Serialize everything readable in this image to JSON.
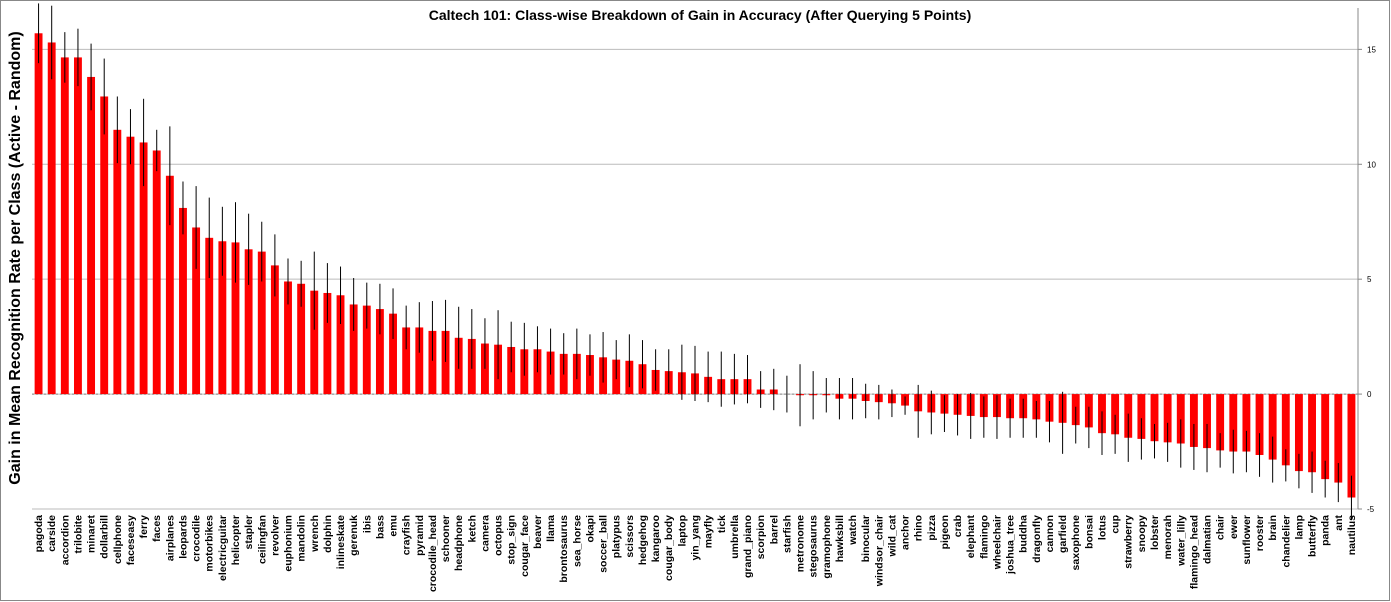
{
  "chart_data": {
    "type": "bar",
    "title": "Caltech 101: Class-wise Breakdown of Gain in Accuracy (After Querying 5 Points)",
    "y_label": "Gain in Mean Recognition Rate per Class (Active - Random)",
    "color": "#ff0000",
    "grid": true,
    "ylim": [
      -5,
      16.8
    ],
    "yticks": [
      -5,
      0,
      5,
      10,
      15
    ],
    "categories": [
      "pagoda",
      "carside",
      "accordion",
      "trilobite",
      "minaret",
      "dollarbill",
      "cellphone",
      "faceseasy",
      "ferry",
      "faces",
      "airplanes",
      "leopards",
      "crocodile",
      "motorbikes",
      "electricguitar",
      "helicopter",
      "stapler",
      "ceilingfan",
      "revolver",
      "euphonium",
      "mandolin",
      "wrench",
      "dolphin",
      "inlineskate",
      "gerenuk",
      "ibis",
      "bass",
      "emu",
      "crayfish",
      "pyramid",
      "crocodile_head",
      "schooner",
      "headphone",
      "ketch",
      "camera",
      "octopus",
      "stop_sign",
      "cougar_face",
      "beaver",
      "llama",
      "brontosaurus",
      "sea_horse",
      "okapi",
      "soccer_ball",
      "platypus",
      "scissors",
      "hedgehog",
      "kangaroo",
      "cougar_body",
      "laptop",
      "yin_yang",
      "mayfly",
      "tick",
      "umbrella",
      "grand_piano",
      "scorpion",
      "barrel",
      "starfish",
      "metronome",
      "stegosaurus",
      "gramophone",
      "hawksbill",
      "watch",
      "binocular",
      "windsor_chair",
      "wild_cat",
      "anchor",
      "rhino",
      "pizza",
      "pigeon",
      "crab",
      "elephant",
      "flamingo",
      "wheelchair",
      "joshua_tree",
      "buddha",
      "dragonfly",
      "cannon",
      "garfield",
      "saxophone",
      "bonsai",
      "lotus",
      "cup",
      "strawberry",
      "snoopy",
      "lobster",
      "menorah",
      "water_lilly",
      "flamingo_head",
      "dalmatian",
      "chair",
      "ewer",
      "sunflower",
      "rooster",
      "brain",
      "chandelier",
      "lamp",
      "butterfly",
      "panda",
      "ant",
      "nautilus"
    ],
    "values": [
      15.7,
      15.3,
      14.65,
      14.65,
      13.8,
      12.95,
      11.5,
      11.2,
      10.95,
      10.6,
      9.5,
      8.1,
      7.25,
      6.8,
      6.65,
      6.6,
      6.3,
      6.2,
      5.6,
      4.9,
      4.8,
      4.5,
      4.4,
      4.3,
      3.9,
      3.85,
      3.7,
      3.5,
      2.9,
      2.9,
      2.75,
      2.75,
      2.45,
      2.4,
      2.2,
      2.15,
      2.05,
      1.95,
      1.95,
      1.85,
      1.75,
      1.75,
      1.7,
      1.6,
      1.5,
      1.45,
      1.3,
      1.05,
      1.0,
      0.95,
      0.9,
      0.75,
      0.65,
      0.65,
      0.65,
      0.2,
      0.2,
      0,
      -0.05,
      -0.05,
      -0.05,
      -0.2,
      -0.2,
      -0.3,
      -0.35,
      -0.4,
      -0.5,
      -0.75,
      -0.8,
      -0.85,
      -0.9,
      -0.95,
      -1.0,
      -1.0,
      -1.05,
      -1.05,
      -1.1,
      -1.2,
      -1.25,
      -1.35,
      -1.45,
      -1.7,
      -1.75,
      -1.9,
      -1.95,
      -2.05,
      -2.1,
      -2.15,
      -2.3,
      -2.35,
      -2.45,
      -2.5,
      -2.5,
      -2.65,
      -2.85,
      -3.1,
      -3.35,
      -3.4,
      -3.7,
      -3.85,
      -4.5
    ],
    "errors": [
      1.3,
      1.6,
      1.1,
      1.25,
      1.45,
      1.65,
      1.45,
      1.2,
      1.9,
      0.9,
      2.15,
      1.15,
      1.8,
      1.75,
      1.5,
      1.75,
      1.55,
      1.3,
      1.35,
      1.0,
      1.0,
      1.7,
      1.3,
      1.25,
      1.15,
      1.0,
      1.1,
      1.1,
      0.95,
      1.1,
      1.3,
      1.35,
      1.35,
      1.3,
      1.1,
      1.5,
      1.1,
      1.15,
      1.0,
      1.0,
      0.9,
      1.1,
      0.9,
      1.1,
      0.85,
      1.15,
      1.05,
      0.9,
      0.95,
      1.2,
      1.2,
      1.1,
      1.2,
      1.1,
      1.05,
      0.8,
      0.9,
      0.8,
      1.35,
      1.05,
      0.75,
      0.9,
      0.9,
      0.75,
      0.75,
      0.6,
      0.4,
      1.15,
      0.95,
      0.8,
      0.9,
      1.0,
      0.9,
      0.95,
      0.85,
      0.85,
      0.8,
      0.9,
      1.35,
      0.8,
      0.9,
      0.95,
      0.85,
      1.05,
      0.9,
      0.75,
      0.85,
      1.05,
      1.0,
      1.05,
      0.75,
      0.95,
      0.9,
      0.95,
      1.0,
      0.7,
      0.75,
      0.9,
      0.8,
      0.85,
      0.95
    ]
  }
}
